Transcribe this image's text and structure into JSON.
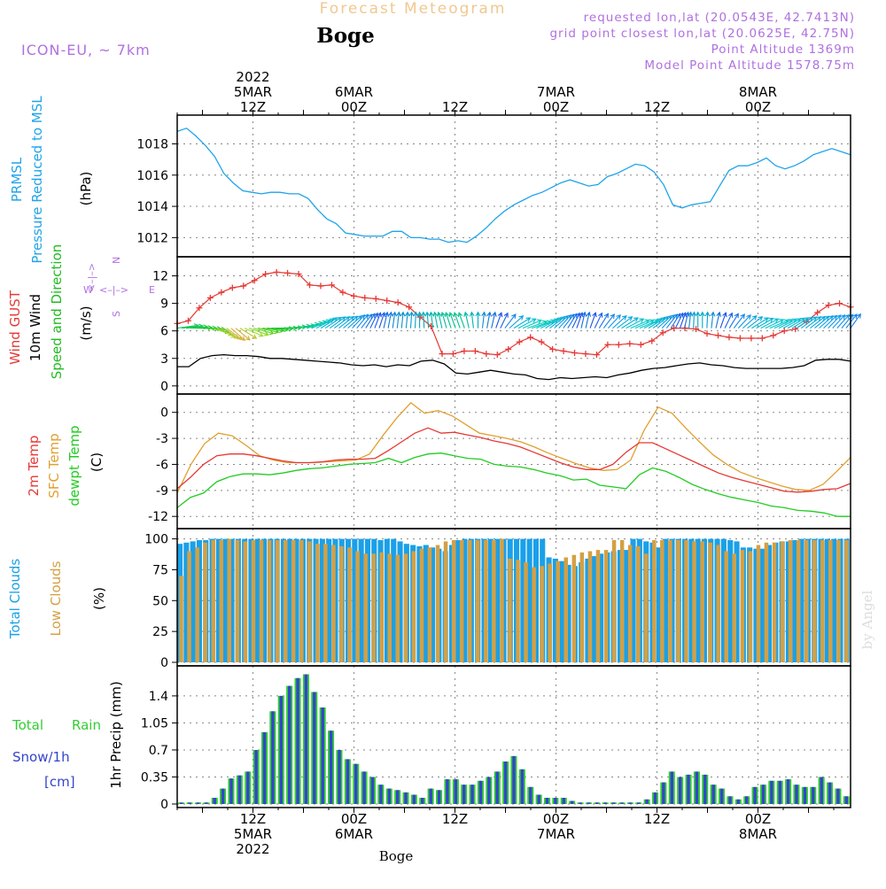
{
  "header": {
    "title": "Forecast Meteogram",
    "location": "Boge",
    "model": "ICON-EU, ~ 7km",
    "requested": "requested lon,lat (20.0543E, 42.7413N)",
    "gridpoint": "grid point closest lon,lat (20.0625E, 42.75N)",
    "point_alt": "Point Altitude 1369m",
    "model_alt": "Model Point Altitude 1578.75m",
    "footer_location": "Boge",
    "credit": "by Angel"
  },
  "colors": {
    "pressure": "#1fa4e8",
    "gust": "#e53935",
    "wind": "#000000",
    "direction": "#22bb22",
    "temp": "#e53935",
    "sfc": "#e0a030",
    "dew": "#22cc22",
    "total_clouds": "#1aa0e8",
    "low_clouds": "#d4a044",
    "rain": "#33cc33",
    "snow": "#3344cc",
    "purple": "#b070e0",
    "gold": "#f0c890"
  },
  "time_axis": {
    "top": [
      {
        "i": 9,
        "lines": [
          "2022",
          "5MAR",
          "12Z"
        ]
      },
      {
        "i": 21,
        "lines": [
          "6MAR",
          "00Z"
        ]
      },
      {
        "i": 33,
        "lines": [
          "12Z"
        ]
      },
      {
        "i": 45,
        "lines": [
          "7MAR",
          "00Z"
        ]
      },
      {
        "i": 57,
        "lines": [
          "12Z"
        ]
      },
      {
        "i": 69,
        "lines": [
          "8MAR",
          "00Z"
        ]
      }
    ],
    "bottom": [
      {
        "i": 9,
        "lines": [
          "12Z",
          "5MAR",
          "2022"
        ]
      },
      {
        "i": 21,
        "lines": [
          "00Z",
          "6MAR"
        ]
      },
      {
        "i": 33,
        "lines": [
          "12Z"
        ]
      },
      {
        "i": 45,
        "lines": [
          "00Z",
          "7MAR"
        ]
      },
      {
        "i": 57,
        "lines": [
          "12Z"
        ]
      },
      {
        "i": 69,
        "lines": [
          "00Z",
          "8MAR"
        ]
      }
    ]
  },
  "chart_data": [
    {
      "type": "line",
      "title": "PRMSL Pressure Reduced to MSL",
      "label_lines": [
        "PRMSL",
        "Pressure Reduced to MSL"
      ],
      "ylabel": "(hPa)",
      "ylim": [
        1011,
        1019.5
      ],
      "yticks": [
        1012,
        1014,
        1016,
        1018
      ],
      "series": [
        {
          "name": "PRMSL",
          "values": [
            1018.8,
            1019.0,
            1018.5,
            1017.9,
            1017.2,
            1016.1,
            1015.5,
            1015.0,
            1014.9,
            1014.8,
            1014.9,
            1014.9,
            1014.8,
            1014.8,
            1014.5,
            1013.8,
            1013.2,
            1012.9,
            1012.3,
            1012.2,
            1012.1,
            1012.1,
            1012.1,
            1012.4,
            1012.4,
            1012.0,
            1012.0,
            1011.9,
            1011.9,
            1011.7,
            1011.8,
            1011.7,
            1012.1,
            1012.6,
            1013.2,
            1013.7,
            1014.1,
            1014.4,
            1014.7,
            1014.9,
            1015.2,
            1015.5,
            1015.7,
            1015.5,
            1015.3,
            1015.4,
            1015.9,
            1016.1,
            1016.4,
            1016.7,
            1016.6,
            1016.2,
            1015.4,
            1014.1,
            1013.9,
            1014.1,
            1014.2,
            1014.3,
            1015.3,
            1016.3,
            1016.6,
            1016.6,
            1016.8,
            1017.1,
            1016.6,
            1016.4,
            1016.6,
            1016.9,
            1017.3,
            1017.5,
            1017.7,
            1017.5,
            1017.3
          ]
        }
      ]
    },
    {
      "type": "line",
      "title": "Wind GUST / 10m Wind Speed and Direction",
      "label_lines": [
        "Wind GUST",
        "10m Wind",
        "Speed and Direction"
      ],
      "ylabel": "(m/s)",
      "compass": {
        "n": "N",
        "s": "S",
        "e": "E",
        "w": "W"
      },
      "ylim": [
        -0.5,
        13.5
      ],
      "yticks": [
        0,
        3,
        6,
        9,
        12
      ],
      "series": [
        {
          "name": "Wind GUST",
          "values": [
            6.8,
            7.1,
            8.5,
            9.6,
            10.2,
            10.7,
            10.9,
            11.5,
            12.2,
            12.4,
            12.3,
            12.2,
            11.0,
            10.9,
            11.0,
            10.2,
            9.8,
            9.6,
            9.5,
            9.3,
            9.1,
            8.6,
            7.5,
            6.5,
            3.5,
            3.5,
            3.8,
            3.8,
            3.5,
            3.4,
            4.0,
            4.8,
            5.3,
            4.8,
            4.0,
            3.8,
            3.6,
            3.5,
            3.4,
            4.5,
            4.5,
            4.6,
            4.5,
            4.9,
            5.8,
            6.3,
            6.3,
            6.2,
            5.7,
            5.5,
            5.3,
            5.2,
            5.2,
            5.2,
            5.5,
            6.0,
            6.2,
            7.0,
            8.0,
            8.8,
            9.0,
            8.6
          ]
        },
        {
          "name": "10m Wind",
          "values": [
            2.1,
            2.1,
            3.0,
            3.3,
            3.4,
            3.3,
            3.3,
            3.2,
            3.0,
            3.0,
            2.9,
            2.8,
            2.7,
            2.6,
            2.5,
            2.3,
            2.2,
            2.3,
            2.1,
            2.3,
            2.2,
            2.7,
            2.8,
            2.4,
            1.4,
            1.3,
            1.5,
            1.7,
            1.5,
            1.3,
            1.2,
            0.8,
            0.7,
            0.9,
            0.8,
            0.9,
            1.0,
            0.9,
            1.2,
            1.4,
            1.7,
            1.9,
            2.0,
            2.2,
            2.4,
            2.5,
            2.3,
            2.2,
            2.0,
            1.9,
            1.9,
            1.9,
            1.9,
            2.0,
            2.2,
            2.8,
            2.9,
            2.9,
            2.7
          ]
        },
        {
          "name": "Wind Direction (deg)",
          "values": [
            260,
            262,
            265,
            268,
            270,
            272,
            275,
            285,
            295,
            305,
            310,
            315,
            320,
            318,
            310,
            300,
            295,
            290,
            285,
            280,
            276,
            272,
            270,
            268,
            265,
            262,
            260,
            255,
            250,
            245,
            240,
            235,
            230,
            228,
            226,
            225,
            224,
            222,
            220,
            215,
            212,
            210,
            205,
            200,
            196,
            194,
            190,
            188,
            186,
            185,
            184,
            184,
            183,
            182,
            180,
            178,
            176,
            174,
            172,
            170,
            168,
            166,
            165,
            165,
            165,
            170,
            175,
            180,
            185,
            188,
            190,
            195,
            200,
            210,
            220,
            230,
            235,
            240,
            245,
            245,
            240,
            235,
            230,
            225,
            220,
            215,
            210,
            205,
            200,
            195,
            190,
            190,
            195,
            200,
            205,
            210,
            215,
            220,
            225,
            230,
            235,
            240,
            240,
            240,
            235,
            230,
            225,
            220,
            215,
            210,
            205,
            200,
            195,
            190,
            185,
            182,
            180,
            180,
            182,
            185,
            190,
            195,
            200,
            205,
            210,
            215,
            220,
            225,
            230,
            232,
            235,
            238,
            240,
            238,
            236,
            234,
            232,
            230,
            228,
            226,
            225,
            224,
            222,
            220,
            218,
            216,
            215,
            214,
            212,
            210,
            208
          ]
        }
      ]
    },
    {
      "type": "line",
      "title": "2m Temp / SFC Temp / dewpt Temp",
      "label_lines": [
        "2m Temp",
        "SFC Temp",
        "dewpt Temp"
      ],
      "ylabel": "(C)",
      "ylim": [
        -13,
        1.5
      ],
      "yticks": [
        0,
        -3,
        -6,
        -9,
        -12
      ],
      "series": [
        {
          "name": "2m Temp",
          "values": [
            -8.8,
            -7.5,
            -6.0,
            -5.0,
            -4.8,
            -4.8,
            -5.0,
            -5.3,
            -5.6,
            -5.8,
            -5.8,
            -5.7,
            -5.5,
            -5.4,
            -5.4,
            -5.3,
            -4.4,
            -3.4,
            -2.4,
            -1.8,
            -2.4,
            -2.3,
            -2.6,
            -2.9,
            -3.3,
            -3.6,
            -4.0,
            -4.6,
            -5.2,
            -5.8,
            -6.3,
            -6.6,
            -6.6,
            -6.0,
            -4.6,
            -3.5,
            -3.5,
            -4.2,
            -4.9,
            -5.6,
            -6.3,
            -7.0,
            -7.5,
            -7.9,
            -8.3,
            -8.7,
            -9.1,
            -9.2,
            -9.1,
            -8.9,
            -8.8,
            -8.2
          ]
        },
        {
          "name": "SFC Temp",
          "values": [
            -9.3,
            -6.0,
            -3.6,
            -2.4,
            -2.7,
            -3.8,
            -5.0,
            -5.5,
            -5.8,
            -5.8,
            -5.8,
            -5.7,
            -5.6,
            -5.5,
            -4.8,
            -2.6,
            -0.6,
            1.1,
            -0.1,
            0.2,
            -0.4,
            -1.4,
            -2.4,
            -2.7,
            -3.0,
            -3.4,
            -4.0,
            -4.7,
            -5.3,
            -5.9,
            -6.4,
            -6.7,
            -6.6,
            -5.5,
            -2.0,
            0.6,
            -0.1,
            -1.8,
            -3.4,
            -4.9,
            -6.0,
            -6.9,
            -7.5,
            -8.0,
            -8.5,
            -8.9,
            -9.0,
            -8.3,
            -6.8,
            -5.2
          ]
        },
        {
          "name": "dewpt Temp",
          "values": [
            -11.0,
            -9.8,
            -9.3,
            -8.0,
            -7.4,
            -7.1,
            -7.1,
            -7.2,
            -7.0,
            -6.7,
            -6.5,
            -6.4,
            -6.2,
            -6.0,
            -5.9,
            -5.8,
            -5.3,
            -5.8,
            -5.2,
            -4.8,
            -4.7,
            -5.0,
            -5.3,
            -5.4,
            -6.0,
            -6.2,
            -6.3,
            -6.6,
            -7.0,
            -7.3,
            -7.8,
            -7.7,
            -8.4,
            -8.6,
            -8.8,
            -7.2,
            -6.4,
            -6.8,
            -7.5,
            -8.3,
            -8.9,
            -9.4,
            -9.8,
            -10.1,
            -10.4,
            -10.8,
            -11.0,
            -11.3,
            -11.4,
            -11.6,
            -12.0,
            -12.0
          ]
        }
      ]
    },
    {
      "type": "bar",
      "title": "Total Clouds / Low Clouds",
      "label_lines": [
        "Total Clouds",
        "Low Clouds"
      ],
      "ylabel": "(%)",
      "ylim": [
        0,
        104
      ],
      "yticks": [
        0,
        25,
        50,
        75,
        100
      ],
      "series": [
        {
          "name": "Total Clouds",
          "values": [
            96,
            97,
            98,
            99,
            99,
            100,
            100,
            100,
            100,
            100,
            100,
            100,
            100,
            100,
            100,
            100,
            100,
            100,
            100,
            100,
            100,
            100,
            100,
            100,
            100,
            100,
            100,
            100,
            100,
            100,
            100,
            99,
            100,
            100,
            98,
            96,
            95,
            94,
            95,
            93,
            92,
            90,
            95,
            99,
            100,
            100,
            100,
            100,
            100,
            100,
            100,
            100,
            100,
            100,
            100,
            100,
            100,
            85,
            84,
            82,
            79,
            78,
            81,
            84,
            86,
            88,
            89,
            90,
            91,
            91,
            100,
            100,
            98,
            97,
            93,
            100,
            100,
            100,
            100,
            100,
            100,
            100,
            100,
            100,
            100,
            99,
            98,
            93,
            93,
            92,
            92,
            95,
            97,
            98,
            98,
            99,
            100,
            100,
            100,
            100,
            100,
            100,
            100,
            100
          ]
        },
        {
          "name": "Low Clouds",
          "values": [
            70,
            90,
            93,
            97,
            99,
            99,
            100,
            99,
            98,
            99,
            99,
            99,
            99,
            99,
            99,
            99,
            98,
            96,
            96,
            95,
            94,
            93,
            90,
            88,
            88,
            89,
            88,
            87,
            88,
            90,
            92,
            93,
            95,
            98,
            99,
            99,
            99,
            99,
            99,
            99,
            100,
            84,
            83,
            81,
            77,
            78,
            80,
            82,
            85,
            87,
            89,
            90,
            91,
            91,
            99,
            99,
            95,
            94,
            88,
            99,
            99,
            99,
            99,
            99,
            98,
            98,
            97,
            95,
            90,
            88,
            91,
            90,
            95,
            97,
            97,
            98,
            99,
            99,
            99,
            99,
            99,
            99,
            99,
            99
          ]
        }
      ]
    },
    {
      "type": "bar",
      "title": "1hr Precip (mm)",
      "label_lines": [
        "Total",
        "Rain",
        "Snow/1h",
        "[cm]"
      ],
      "ylabel": "1hr Precip (mm)",
      "ylim": [
        0,
        1.72
      ],
      "yticks": [
        0,
        0.35,
        0.7,
        1.05,
        1.4
      ],
      "ytick_labels": [
        "0",
        "0.35",
        "0.7",
        "1.05",
        "1.4"
      ],
      "series": [
        {
          "name": "Total Rain",
          "values": [
            0.02,
            0.02,
            0.02,
            0.02,
            0.08,
            0.2,
            0.33,
            0.37,
            0.42,
            0.7,
            0.93,
            1.2,
            1.4,
            1.53,
            1.63,
            1.68,
            1.45,
            1.25,
            0.95,
            0.7,
            0.58,
            0.52,
            0.42,
            0.35,
            0.25,
            0.2,
            0.18,
            0.15,
            0.12,
            0.08,
            0.2,
            0.18,
            0.32,
            0.32,
            0.25,
            0.25,
            0.3,
            0.35,
            0.42,
            0.55,
            0.62,
            0.45,
            0.22,
            0.12,
            0.08,
            0.08,
            0.08,
            0.04,
            0.02,
            0.02,
            0.02,
            0.02,
            0.02,
            0.02,
            0.02,
            0.02,
            0.06,
            0.15,
            0.28,
            0.42,
            0.35,
            0.38,
            0.42,
            0.38,
            0.25,
            0.2,
            0.1,
            0.06,
            0.1,
            0.22,
            0.25,
            0.3,
            0.3,
            0.32,
            0.25,
            0.22,
            0.22,
            0.35,
            0.28,
            0.2,
            0.1
          ]
        },
        {
          "name": "Snow/1h",
          "values": [
            0.02,
            0.02,
            0.02,
            0.02,
            0.08,
            0.2,
            0.33,
            0.37,
            0.42,
            0.7,
            0.93,
            1.2,
            1.4,
            1.53,
            1.63,
            1.68,
            1.45,
            1.25,
            0.95,
            0.7,
            0.58,
            0.52,
            0.42,
            0.35,
            0.25,
            0.2,
            0.18,
            0.15,
            0.12,
            0.08,
            0.2,
            0.18,
            0.32,
            0.32,
            0.25,
            0.25,
            0.3,
            0.35,
            0.42,
            0.55,
            0.62,
            0.45,
            0.22,
            0.12,
            0.08,
            0.08,
            0.08,
            0.04,
            0.02,
            0.02,
            0.02,
            0.02,
            0.02,
            0.02,
            0.02,
            0.02,
            0.06,
            0.15,
            0.28,
            0.42,
            0.35,
            0.38,
            0.42,
            0.38,
            0.25,
            0.2,
            0.1,
            0.06,
            0.1,
            0.22,
            0.25,
            0.3,
            0.3,
            0.32,
            0.25,
            0.22,
            0.22,
            0.35,
            0.28,
            0.2,
            0.1
          ]
        }
      ]
    }
  ]
}
